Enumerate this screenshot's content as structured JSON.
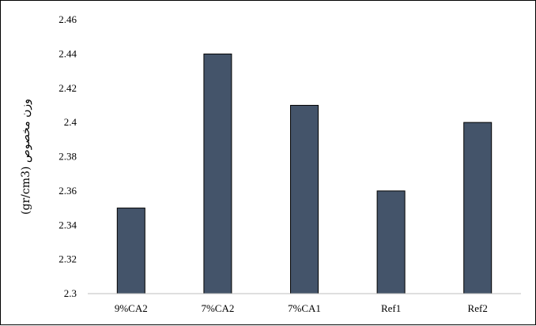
{
  "chart_data": {
    "type": "bar",
    "categories": [
      "9%CA2",
      "7%CA2",
      "7%CA1",
      "Ref1",
      "Ref2"
    ],
    "values": [
      2.35,
      2.44,
      2.41,
      2.36,
      2.4
    ],
    "ylabel": "(gr/cm3) وزن مخصوص",
    "ylim": [
      2.3,
      2.46
    ],
    "yticks": [
      "2.3",
      "2.32",
      "2.34",
      "2.36",
      "2.38",
      "2.4",
      "2.42",
      "2.44",
      "2.46"
    ],
    "bar_color": "#44546a",
    "grid": false,
    "legend": "none"
  }
}
